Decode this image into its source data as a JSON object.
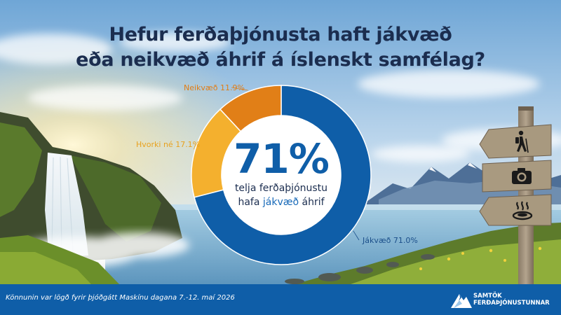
{
  "title": {
    "line1": "Hefur ferðaþjónusta haft jákvæð",
    "line2": "eða neikvæð áhrif á íslenskt samfélag?"
  },
  "center": {
    "big": "71%",
    "line1": "telja ferðaþjónustu",
    "line2_pre": "hafa ",
    "line2_hl": "jákvæð",
    "line2_post": " áhrif"
  },
  "chart_data": {
    "type": "pie",
    "donut": true,
    "categories": [
      "Jákvæð",
      "Hvorki né",
      "Neikvæð"
    ],
    "values": [
      71.0,
      17.1,
      11.9
    ],
    "labels": [
      "Jákvæð 71.0%",
      "Hvorki né 17.1%",
      "Neikvæð 11.9%"
    ],
    "colors": [
      "#0f5ea8",
      "#f4b02e",
      "#e17f17"
    ],
    "label_colors": [
      "#1b4f8a",
      "#e8a21f",
      "#e07d16"
    ]
  },
  "footer": {
    "note": "Könnunin var lögð fyrir þjóðgátt Maskínu dagana 7.-12. maí 2026",
    "logo_line1": "SAMTÖK",
    "logo_line2": "FERÐAÞJÓNUSTUNNAR"
  },
  "signpost": {
    "icons": [
      "hiking-icon",
      "camera-icon",
      "hot-spring-icon"
    ]
  },
  "colors": {
    "title": "#1b2d4f",
    "accent": "#0f5ea8"
  }
}
